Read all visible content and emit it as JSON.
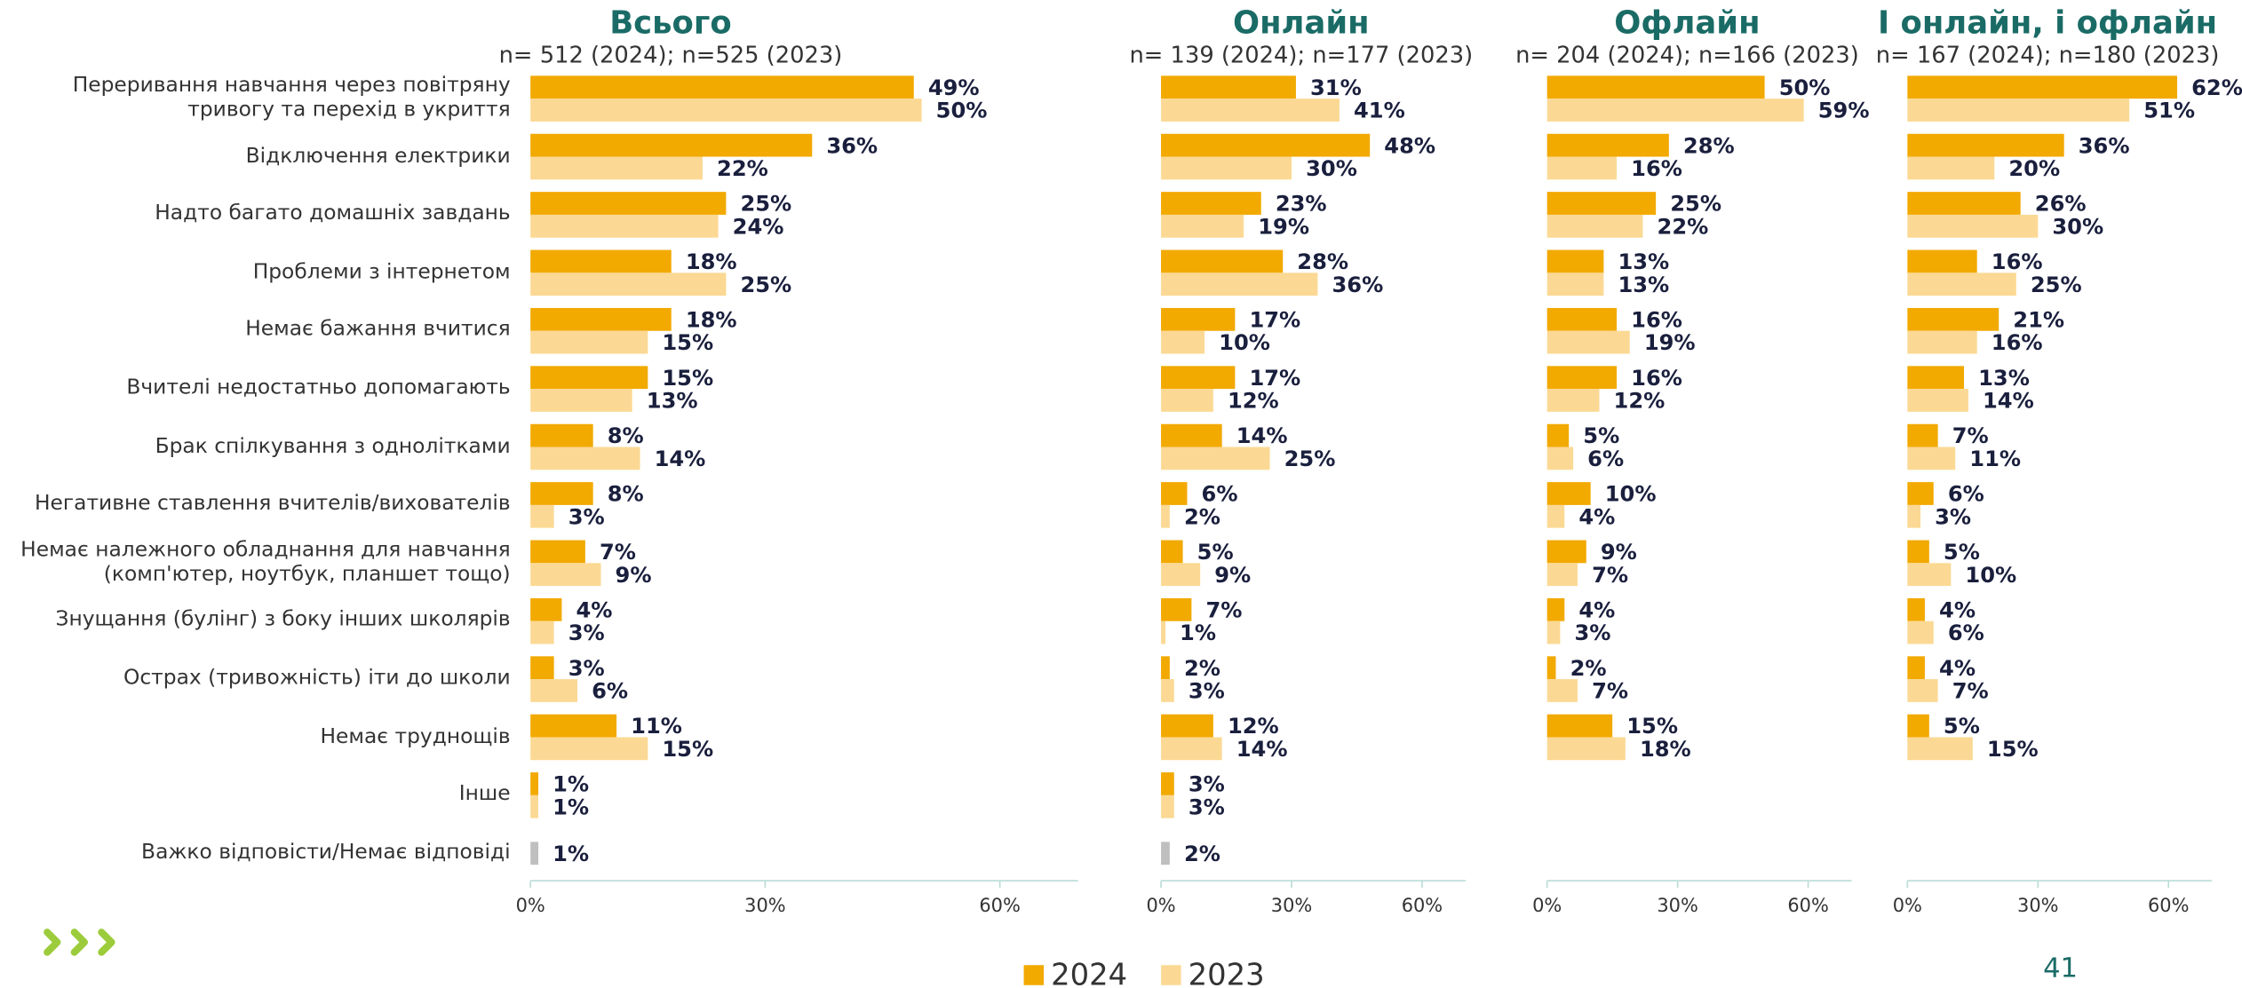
{
  "chart_data": [
    {
      "type": "barh",
      "title": "Всього",
      "subtitle": "n= 512 (2024); n=525 (2023)",
      "categories": [
        "Переривання навчання через повітряну\nтривогу та перехід в укриття",
        "Відключення електрики",
        "Надто багато домашніх завдань",
        "Проблеми з інтернетом",
        "Немає бажання вчитися",
        "Вчителі недостатньо допомагають",
        "Брак спілкування з однолітками",
        "Негативне ставлення вчителів/вихователів",
        "Немає належного обладнання для навчання\n(комп'ютер, ноутбук, планшет тощо)",
        "Знущання (булінг) з боку інших школярів",
        "Острах (тривожність) іти до школи",
        "Немає труднощів",
        "Інше",
        "Важко відповісти/Немає відповіді"
      ],
      "series": [
        {
          "name": "2024",
          "color": "#f2a900",
          "values": [
            49,
            36,
            25,
            18,
            18,
            15,
            8,
            8,
            7,
            4,
            3,
            11,
            1,
            null
          ],
          "value_labels": [
            "49%",
            "36%",
            "25%",
            "18%",
            "18%",
            "15%",
            "8%",
            "8%",
            "7%",
            "4%",
            "3%",
            "11%",
            "1%",
            null
          ]
        },
        {
          "name": "2023",
          "color": "#fbd994",
          "values": [
            50,
            22,
            24,
            25,
            15,
            13,
            14,
            3,
            9,
            3,
            6,
            15,
            1,
            null
          ],
          "value_labels": [
            "50%",
            "22%",
            "24%",
            "25%",
            "15%",
            "13%",
            "14%",
            "3%",
            "9%",
            "3%",
            "6%",
            "15%",
            "1%",
            null
          ]
        },
        {
          "color": "#bfbfbf",
          "values": [
            null,
            null,
            null,
            null,
            null,
            null,
            null,
            null,
            null,
            null,
            null,
            null,
            null,
            1
          ],
          "value_labels": [
            null,
            null,
            null,
            null,
            null,
            null,
            null,
            null,
            null,
            null,
            null,
            null,
            null,
            "1%"
          ]
        }
      ],
      "xlim": [
        0,
        70
      ],
      "xticks": [
        {
          "value": 0,
          "label": "0%"
        },
        {
          "value": 30,
          "label": "30%"
        },
        {
          "value": 60,
          "label": "60%"
        }
      ],
      "legend": "bottom"
    },
    {
      "type": "barh",
      "title": "Онлайн",
      "subtitle": "n= 139 (2024); n=177 (2023)",
      "series": [
        {
          "name": "2024",
          "color": "#f2a900",
          "values": [
            31,
            48,
            23,
            28,
            17,
            17,
            14,
            6,
            5,
            7,
            2,
            12,
            3,
            null
          ],
          "value_labels": [
            "31%",
            "48%",
            "23%",
            "28%",
            "17%",
            "17%",
            "14%",
            "6%",
            "5%",
            "7%",
            "2%",
            "12%",
            "3%",
            null
          ]
        },
        {
          "name": "2023",
          "color": "#fbd994",
          "values": [
            41,
            30,
            19,
            36,
            10,
            12,
            25,
            2,
            9,
            1,
            3,
            14,
            3,
            null
          ],
          "value_labels": [
            "41%",
            "30%",
            "19%",
            "36%",
            "10%",
            "12%",
            "25%",
            "2%",
            "9%",
            "1%",
            "3%",
            "14%",
            "3%",
            null
          ]
        },
        {
          "color": "#bfbfbf",
          "values": [
            null,
            null,
            null,
            null,
            null,
            null,
            null,
            null,
            null,
            null,
            null,
            null,
            null,
            2
          ],
          "value_labels": [
            null,
            null,
            null,
            null,
            null,
            null,
            null,
            null,
            null,
            null,
            null,
            null,
            null,
            "2%"
          ]
        }
      ],
      "xlim": [
        0,
        70
      ],
      "xticks": [
        {
          "value": 0,
          "label": "0%"
        },
        {
          "value": 30,
          "label": "30%"
        },
        {
          "value": 60,
          "label": "60%"
        }
      ]
    },
    {
      "type": "barh",
      "title": "Офлайн",
      "subtitle": "n= 204 (2024); n=166 (2023)",
      "series": [
        {
          "name": "2024",
          "color": "#f2a900",
          "values": [
            50,
            28,
            25,
            13,
            16,
            16,
            5,
            10,
            9,
            4,
            2,
            15,
            null,
            null
          ],
          "value_labels": [
            "50%",
            "28%",
            "25%",
            "13%",
            "16%",
            "16%",
            "5%",
            "10%",
            "9%",
            "4%",
            "2%",
            "15%",
            null,
            null
          ]
        },
        {
          "name": "2023",
          "color": "#fbd994",
          "values": [
            59,
            16,
            22,
            13,
            19,
            12,
            6,
            4,
            7,
            3,
            7,
            18,
            null,
            null
          ],
          "value_labels": [
            "59%",
            "16%",
            "22%",
            "13%",
            "19%",
            "12%",
            "6%",
            "4%",
            "7%",
            "3%",
            "7%",
            "18%",
            null,
            null
          ]
        }
      ],
      "xlim": [
        0,
        70
      ],
      "xticks": [
        {
          "value": 0,
          "label": "0%"
        },
        {
          "value": 30,
          "label": "30%"
        },
        {
          "value": 60,
          "label": "60%"
        }
      ]
    },
    {
      "type": "barh",
      "title": "І онлайн, і офлайн",
      "subtitle": "n= 167 (2024); n=180 (2023)",
      "series": [
        {
          "name": "2024",
          "color": "#f2a900",
          "values": [
            62,
            36,
            26,
            16,
            21,
            13,
            7,
            6,
            5,
            4,
            4,
            5,
            null,
            null
          ],
          "value_labels": [
            "62%",
            "36%",
            "26%",
            "16%",
            "21%",
            "13%",
            "7%",
            "6%",
            "5%",
            "4%",
            "4%",
            "5%",
            null,
            null
          ]
        },
        {
          "name": "2023",
          "color": "#fbd994",
          "values": [
            51,
            20,
            30,
            25,
            16,
            14,
            11,
            3,
            10,
            6,
            7,
            15,
            null,
            null
          ],
          "value_labels": [
            "51%",
            "20%",
            "30%",
            "25%",
            "16%",
            "14%",
            "11%",
            "3%",
            "10%",
            "6%",
            "7%",
            "15%",
            null,
            null
          ]
        }
      ],
      "xlim": [
        0,
        70
      ],
      "xticks": [
        {
          "value": 0,
          "label": "0%"
        },
        {
          "value": 30,
          "label": "30%"
        },
        {
          "value": 60,
          "label": "60%"
        }
      ]
    }
  ],
  "page_number": "41"
}
